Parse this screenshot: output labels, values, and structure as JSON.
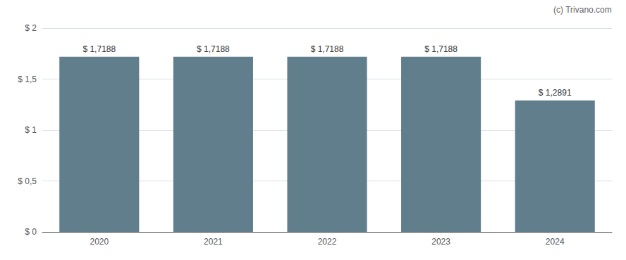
{
  "chart_data": {
    "type": "bar",
    "categories": [
      "2020",
      "2021",
      "2022",
      "2023",
      "2024"
    ],
    "values": [
      1.7188,
      1.7188,
      1.7188,
      1.7188,
      1.2891
    ],
    "value_labels": [
      "$ 1,7188",
      "$ 1,7188",
      "$ 1,7188",
      "$ 1,7188",
      "$ 1,2891"
    ],
    "data_labels": true,
    "color": "#617e8d",
    "ylim": [
      0,
      2.0
    ],
    "yticks": [
      {
        "value": 0,
        "label": "$ 0"
      },
      {
        "value": 0.5,
        "label": "$ 0,5"
      },
      {
        "value": 1.0,
        "label": "$ 1"
      },
      {
        "value": 1.5,
        "label": "$ 1,5"
      },
      {
        "value": 2.0,
        "label": "$ 2"
      }
    ],
    "grid": true,
    "annotations": [
      "(c) Trivano.com"
    ]
  }
}
